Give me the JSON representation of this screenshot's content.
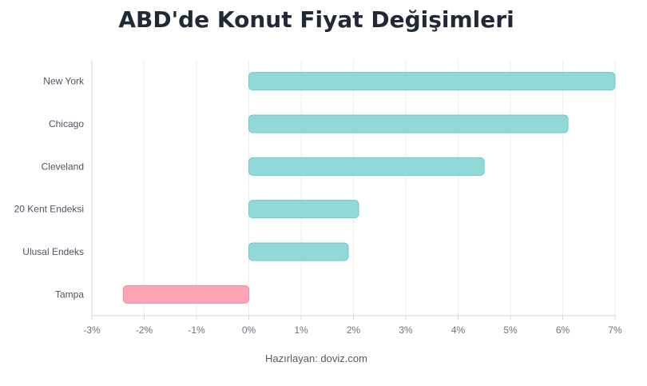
{
  "chart_data": {
    "type": "bar",
    "orientation": "horizontal",
    "title": "ABD'de Konut Fiyat Değişimleri",
    "categories": [
      "New York",
      "Chicago",
      "Cleveland",
      "20 Kent Endeksi",
      "Ulusal Endeks",
      "Tampa"
    ],
    "values": [
      7.0,
      6.1,
      4.5,
      2.1,
      1.9,
      -2.4
    ],
    "xlim": [
      -3,
      7
    ],
    "x_ticks": [
      -3,
      -2,
      -1,
      0,
      1,
      2,
      3,
      4,
      5,
      6,
      7
    ],
    "x_tick_labels": [
      "-3%",
      "-2%",
      "-1%",
      "0%",
      "1%",
      "2%",
      "3%",
      "4%",
      "5%",
      "6%",
      "7%"
    ],
    "grid": "vertical",
    "legend": "none",
    "colors": {
      "positive_fill": "#91d9d9",
      "positive_stroke": "#6cc9c9",
      "negative_fill": "#ffa3b6",
      "negative_stroke": "#f58aa2",
      "grid": "#eeeeee",
      "axis": "#d1d5db"
    }
  },
  "footer": "Hazırlayan: doviz.com"
}
